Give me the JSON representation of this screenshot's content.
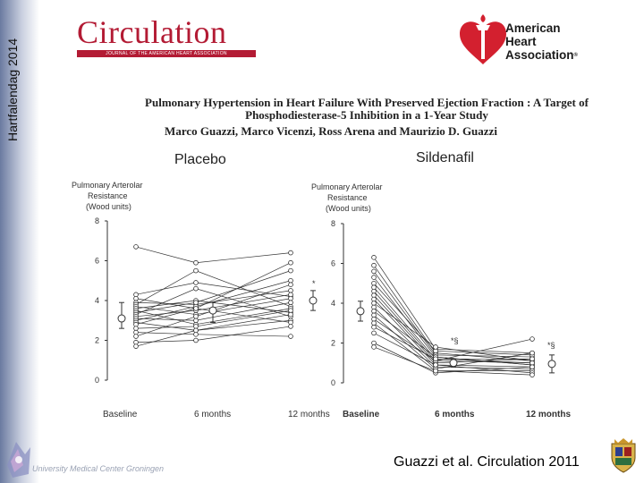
{
  "slide": {
    "sidebar_title": "Hartfalendag 2014",
    "journal_name": "Circulation",
    "journal_subtitle": "JOURNAL OF THE AMERICAN HEART ASSOCIATION",
    "aha_line1": "American",
    "aha_line2": "Heart",
    "aha_line3": "Association",
    "aha_registered": "®",
    "paper_title_line1": "Pulmonary Hypertension in Heart Failure With Preserved Ejection Fraction : A Target of",
    "paper_title_line2": "Phosphodiesterase-5 Inhibition in a 1-Year Study",
    "authors": "Marco Guazzi, Marco Vicenzi, Ross Arena and Maurizio D. Guazzi",
    "footer_institution": "University Medical Center Groningen",
    "citation": "Guazzi et al. Circulation 2011",
    "colors": {
      "journal_red": "#b31b34",
      "aha_red": "#d3202f",
      "plot_line": "#333333",
      "sidebar_dark": "#6a7aa0"
    }
  },
  "chart_data": [
    {
      "type": "scatter",
      "title": "Placebo",
      "ylabel": "Pulmonary Arterolar Resistance (Wood units)",
      "ylim": [
        0,
        8
      ],
      "yticks": [
        0,
        2,
        4,
        6,
        8
      ],
      "categories": [
        "Baseline",
        "6 months",
        "12 months"
      ],
      "annotations": [
        "*"
      ],
      "summary": [
        {
          "category": "Baseline",
          "mean": 3.1,
          "low": 2.6,
          "high": 3.9
        },
        {
          "category": "6 months",
          "mean": 3.5,
          "low": 2.9,
          "high": 3.9
        },
        {
          "category": "12 months",
          "mean": 4.0,
          "low": 3.5,
          "high": 4.5
        }
      ],
      "series": [
        {
          "values": [
            6.7,
            5.9,
            6.4
          ]
        },
        {
          "values": [
            4.3,
            4.9,
            4.2
          ]
        },
        {
          "values": [
            4.1,
            3.6,
            5.9
          ]
        },
        {
          "values": [
            3.9,
            3.8,
            4.5
          ]
        },
        {
          "values": [
            3.8,
            5.5,
            3.7
          ]
        },
        {
          "values": [
            3.7,
            3.3,
            4.1
          ]
        },
        {
          "values": [
            3.6,
            4.0,
            3.4
          ]
        },
        {
          "values": [
            3.5,
            2.8,
            3.6
          ]
        },
        {
          "values": [
            3.4,
            3.9,
            5.5
          ]
        },
        {
          "values": [
            3.3,
            4.6,
            3.2
          ]
        },
        {
          "values": [
            3.2,
            3.5,
            4.3
          ]
        },
        {
          "values": [
            3.1,
            3.0,
            3.9
          ]
        },
        {
          "values": [
            3.0,
            3.7,
            5.0
          ]
        },
        {
          "values": [
            2.9,
            2.5,
            3.0
          ]
        },
        {
          "values": [
            2.8,
            3.6,
            2.9
          ]
        },
        {
          "values": [
            2.6,
            2.7,
            3.5
          ]
        },
        {
          "values": [
            2.4,
            2.3,
            2.2
          ]
        },
        {
          "values": [
            2.2,
            3.2,
            4.8
          ]
        },
        {
          "values": [
            1.9,
            2.0,
            2.7
          ]
        },
        {
          "values": [
            1.7,
            2.5,
            3.3
          ]
        }
      ]
    },
    {
      "type": "scatter",
      "title": "Sildenafil",
      "ylabel": "Pulmonary Arterolar Resistance (Wood units)",
      "ylim": [
        0,
        8
      ],
      "yticks": [
        0,
        2,
        4,
        6,
        8
      ],
      "categories": [
        "Baseline",
        "6 months",
        "12 months"
      ],
      "annotations": [
        "*§",
        "*§"
      ],
      "summary": [
        {
          "category": "Baseline",
          "mean": 3.6,
          "low": 3.1,
          "high": 4.1
        },
        {
          "category": "6 months",
          "mean": 1.0,
          "low": 0.8,
          "high": 1.2
        },
        {
          "category": "12 months",
          "mean": 0.95,
          "low": 0.5,
          "high": 1.4
        }
      ],
      "series": [
        {
          "values": [
            6.3,
            1.7,
            1.5
          ]
        },
        {
          "values": [
            5.9,
            1.5,
            1.1
          ]
        },
        {
          "values": [
            5.6,
            1.4,
            1.3
          ]
        },
        {
          "values": [
            5.3,
            1.3,
            0.9
          ]
        },
        {
          "values": [
            5.0,
            1.6,
            1.4
          ]
        },
        {
          "values": [
            4.8,
            1.2,
            1.0
          ]
        },
        {
          "values": [
            4.6,
            1.1,
            2.2
          ]
        },
        {
          "values": [
            4.4,
            1.0,
            1.2
          ]
        },
        {
          "values": [
            4.2,
            0.9,
            0.8
          ]
        },
        {
          "values": [
            4.0,
            1.8,
            1.1
          ]
        },
        {
          "values": [
            3.8,
            0.8,
            0.7
          ]
        },
        {
          "values": [
            3.6,
            1.3,
            0.9
          ]
        },
        {
          "values": [
            3.4,
            0.7,
            1.5
          ]
        },
        {
          "values": [
            3.2,
            1.1,
            1.0
          ]
        },
        {
          "values": [
            3.0,
            0.6,
            0.6
          ]
        },
        {
          "values": [
            2.8,
            1.2,
            1.2
          ]
        },
        {
          "values": [
            2.5,
            0.9,
            0.5
          ]
        },
        {
          "values": [
            2.0,
            0.5,
            0.8
          ]
        },
        {
          "values": [
            1.8,
            0.6,
            0.4
          ]
        }
      ]
    }
  ]
}
